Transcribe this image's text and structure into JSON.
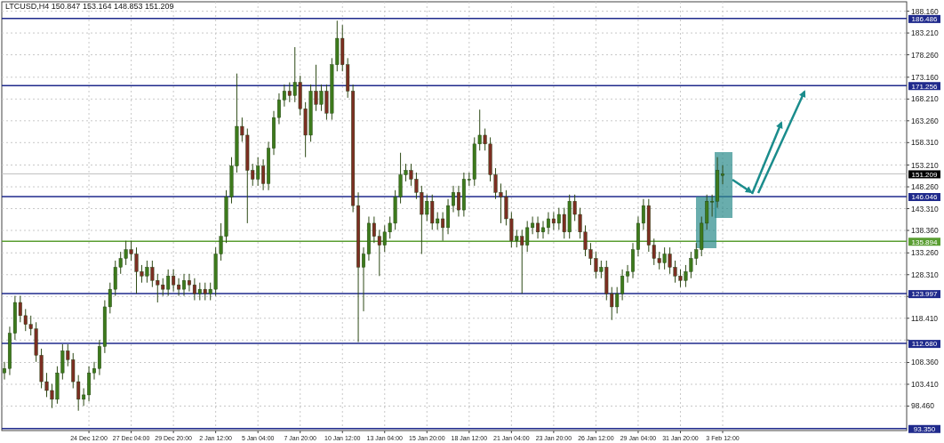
{
  "chart_data": {
    "type": "candlestick",
    "title": "LTCUSD,H4  150.847 153.164 148.853 151.209",
    "categories": [
      null,
      null,
      null,
      null,
      null,
      null,
      null,
      null,
      null,
      null,
      null,
      null,
      null,
      null,
      null,
      null,
      "24 Dec 12:00",
      null,
      null,
      null,
      null,
      null,
      null,
      null,
      "27 Dec 04:00",
      null,
      null,
      null,
      null,
      null,
      null,
      null,
      "29 Dec 20:00",
      null,
      null,
      null,
      null,
      null,
      null,
      null,
      "2 Jan 12:00",
      null,
      null,
      null,
      null,
      null,
      null,
      null,
      "5 Jan 04:00",
      null,
      null,
      null,
      null,
      null,
      null,
      null,
      "7 Jan 20:00",
      null,
      null,
      null,
      null,
      null,
      null,
      null,
      "10 Jan 12:00",
      null,
      null,
      null,
      null,
      null,
      null,
      null,
      "13 Jan 04:00",
      null,
      null,
      null,
      null,
      null,
      null,
      null,
      "15 Jan 20:00",
      null,
      null,
      null,
      null,
      null,
      null,
      null,
      "18 Jan 12:00",
      null,
      null,
      null,
      null,
      null,
      null,
      null,
      "21 Jan 04:00",
      null,
      null,
      null,
      null,
      null,
      null,
      null,
      "23 Jan 20:00",
      null,
      null,
      null,
      null,
      null,
      null,
      null,
      "26 Jan 12:00",
      null,
      null,
      null,
      null,
      null,
      null,
      null,
      "29 Jan 04:00",
      null,
      null,
      null,
      null,
      null,
      null,
      null,
      "31 Jan 20:00",
      null,
      null,
      null,
      null,
      null,
      null,
      null,
      "3 Feb 12:00",
      null,
      null,
      null,
      null,
      null,
      null,
      null,
      null,
      null,
      null,
      null,
      null,
      null,
      null,
      null,
      null,
      null,
      null,
      null,
      null,
      null,
      null,
      null,
      null,
      null,
      null,
      null,
      null,
      null,
      null,
      null,
      null,
      null,
      null
    ],
    "ohlc": [
      [
        106,
        108.5,
        104.5,
        107
      ],
      [
        107,
        116.5,
        105.5,
        115
      ],
      [
        115,
        123.5,
        113.5,
        122
      ],
      [
        122,
        123.5,
        117.5,
        119
      ],
      [
        119,
        120.5,
        115.5,
        117
      ],
      [
        117,
        119,
        114.5,
        116
      ],
      [
        116,
        117.5,
        108.5,
        110
      ],
      [
        110,
        111.5,
        102.5,
        104
      ],
      [
        104,
        106,
        100.5,
        102
      ],
      [
        102,
        103.5,
        98,
        100
      ],
      [
        100,
        107.5,
        99,
        106
      ],
      [
        106,
        112.5,
        104.5,
        111
      ],
      [
        111,
        112.5,
        107.5,
        109
      ],
      [
        109,
        110.5,
        102.5,
        104
      ],
      [
        104,
        105.5,
        97.4,
        100
      ],
      [
        100,
        102.5,
        98.5,
        101
      ],
      [
        101,
        107.5,
        99.5,
        106
      ],
      [
        106,
        108.5,
        104.5,
        107
      ],
      [
        107,
        113.5,
        105.5,
        112
      ],
      [
        112,
        122.5,
        110.5,
        121
      ],
      [
        121,
        126.5,
        119.5,
        125
      ],
      [
        125,
        131.5,
        123.5,
        130
      ],
      [
        130,
        133.5,
        128.5,
        132
      ],
      [
        132,
        136,
        130.5,
        134
      ],
      [
        134,
        136,
        131.5,
        133
      ],
      [
        133,
        134.5,
        124,
        129
      ],
      [
        129,
        130.5,
        126.5,
        128
      ],
      [
        128,
        131.5,
        126.5,
        130
      ],
      [
        130,
        131.5,
        125.5,
        127
      ],
      [
        127,
        128.5,
        122,
        126
      ],
      [
        126,
        127.5,
        123.5,
        125
      ],
      [
        125,
        129.5,
        123.5,
        128
      ],
      [
        128,
        129.5,
        124.5,
        126
      ],
      [
        126,
        127.5,
        123.5,
        125
      ],
      [
        125,
        128.5,
        123.5,
        127
      ],
      [
        127,
        128.5,
        124.5,
        126
      ],
      [
        126,
        127.5,
        122.5,
        124
      ],
      [
        124,
        126.5,
        122.5,
        125
      ],
      [
        125,
        126.5,
        122.5,
        124
      ],
      [
        124,
        126.5,
        122.5,
        125
      ],
      [
        125,
        134.5,
        123.5,
        133
      ],
      [
        133,
        140,
        131.5,
        137
      ],
      [
        137,
        147.5,
        135.5,
        146
      ],
      [
        146,
        155,
        144.5,
        153
      ],
      [
        153,
        174,
        151.5,
        162
      ],
      [
        162,
        164,
        158.5,
        160
      ],
      [
        160,
        161.5,
        140,
        152
      ],
      [
        152,
        153.5,
        148.5,
        150
      ],
      [
        150,
        155,
        148.5,
        153
      ],
      [
        153,
        154.5,
        147.5,
        149
      ],
      [
        149,
        158.5,
        147.5,
        157
      ],
      [
        157,
        165.5,
        155.5,
        164
      ],
      [
        164,
        169.5,
        162.5,
        168
      ],
      [
        168,
        171.5,
        166.5,
        170
      ],
      [
        170,
        172,
        167.5,
        169
      ],
      [
        169,
        180,
        167.5,
        172
      ],
      [
        172,
        173.5,
        164.5,
        166
      ],
      [
        166,
        167.5,
        155,
        160
      ],
      [
        160,
        171.5,
        158.5,
        170
      ],
      [
        170,
        176,
        165.5,
        167
      ],
      [
        167,
        171.5,
        165.5,
        170
      ],
      [
        170,
        171.5,
        163.5,
        165
      ],
      [
        165,
        177.5,
        163.5,
        176
      ],
      [
        176,
        186,
        174.5,
        182
      ],
      [
        182,
        185,
        174.5,
        176
      ],
      [
        176,
        177.5,
        168.5,
        170
      ],
      [
        170,
        171.5,
        142.5,
        144
      ],
      [
        144,
        147,
        113,
        130
      ],
      [
        130,
        134.5,
        120,
        133
      ],
      [
        133,
        141.5,
        131.5,
        140
      ],
      [
        140,
        141.5,
        135.5,
        137
      ],
      [
        137,
        138.5,
        128,
        135
      ],
      [
        135,
        139.5,
        133.5,
        138
      ],
      [
        138,
        141.5,
        136.5,
        140
      ],
      [
        140,
        147.5,
        138.5,
        146
      ],
      [
        146,
        156,
        144.5,
        151
      ],
      [
        151,
        153.5,
        149.5,
        152
      ],
      [
        152,
        153.5,
        148.5,
        150
      ],
      [
        150,
        151.5,
        145.5,
        147
      ],
      [
        147,
        148.5,
        133,
        142
      ],
      [
        142,
        146.5,
        140.5,
        145
      ],
      [
        145,
        146.5,
        138.5,
        140
      ],
      [
        140,
        142.5,
        138.5,
        141
      ],
      [
        141,
        142.5,
        136,
        139
      ],
      [
        139,
        145.5,
        137.5,
        144
      ],
      [
        144,
        148.5,
        142.5,
        147
      ],
      [
        147,
        148.5,
        141.5,
        143
      ],
      [
        143,
        151.5,
        141.5,
        150
      ],
      [
        150,
        151.5,
        148.5,
        150
      ],
      [
        150,
        159.5,
        148.5,
        158
      ],
      [
        158,
        165.8,
        156.5,
        160
      ],
      [
        160,
        161.5,
        156.5,
        158
      ],
      [
        158,
        159.5,
        149.5,
        151
      ],
      [
        151,
        152.5,
        145.5,
        147
      ],
      [
        147,
        149,
        140,
        146
      ],
      [
        146,
        147.5,
        139.5,
        141
      ],
      [
        141,
        142.5,
        134.5,
        136
      ],
      [
        136,
        138.5,
        134.5,
        137
      ],
      [
        137,
        138.5,
        124,
        135
      ],
      [
        135,
        140.5,
        133.5,
        139
      ],
      [
        139,
        141.5,
        137.5,
        140
      ],
      [
        140,
        141.5,
        136.5,
        138
      ],
      [
        138,
        140.5,
        136.5,
        139
      ],
      [
        139,
        142.5,
        137.5,
        141
      ],
      [
        141,
        142.5,
        138.5,
        140
      ],
      [
        140,
        143.5,
        138.5,
        142
      ],
      [
        142,
        143.5,
        136.5,
        138
      ],
      [
        138,
        146.5,
        136.5,
        145
      ],
      [
        145,
        146.5,
        140.5,
        142
      ],
      [
        142,
        143.5,
        136.5,
        138
      ],
      [
        138,
        139.5,
        132.5,
        134
      ],
      [
        134,
        135.5,
        130.5,
        132
      ],
      [
        132,
        133.5,
        127.5,
        129
      ],
      [
        129,
        131.5,
        127.5,
        130
      ],
      [
        130,
        131.5,
        122.5,
        124
      ],
      [
        124,
        125.5,
        118,
        121
      ],
      [
        121,
        125.5,
        119.5,
        124
      ],
      [
        124,
        129.5,
        122.5,
        128
      ],
      [
        128,
        130.5,
        126.5,
        129
      ],
      [
        129,
        135.5,
        127.5,
        134
      ],
      [
        134,
        141.5,
        132.5,
        140
      ],
      [
        140,
        145.5,
        138.5,
        144
      ],
      [
        144,
        145.5,
        133.5,
        135
      ],
      [
        135,
        136.5,
        130.5,
        132
      ],
      [
        132,
        133.5,
        129.5,
        131
      ],
      [
        131,
        134.5,
        129.5,
        133
      ],
      [
        133,
        134.5,
        128.5,
        130
      ],
      [
        130,
        131.5,
        126.5,
        128
      ],
      [
        128,
        129.5,
        125.5,
        127
      ],
      [
        127,
        130.5,
        125.5,
        129
      ],
      [
        129,
        133.5,
        127.5,
        132
      ],
      [
        132,
        135.5,
        130.5,
        134
      ],
      [
        134,
        141.5,
        132.5,
        140
      ],
      [
        140,
        146.5,
        138.5,
        145
      ],
      [
        145,
        146.5,
        141.5,
        145
      ],
      [
        145,
        155,
        143.5,
        152
      ],
      [
        150.847,
        153.164,
        148.853,
        151.209
      ],
      null,
      null,
      null,
      null,
      null,
      null,
      null,
      null,
      null,
      null,
      null,
      null,
      null,
      null,
      null,
      null,
      null,
      null,
      null,
      null,
      null,
      null,
      null,
      null,
      null,
      null,
      null,
      null,
      null,
      null,
      null,
      null,
      null,
      null
    ],
    "ylim": [
      92.9,
      190.3
    ],
    "yticks": [
      {
        "value": 188.16,
        "label": "188.160"
      },
      {
        "value": 183.21,
        "label": "183.210"
      },
      {
        "value": 178.26,
        "label": "178.260"
      },
      {
        "value": 173.16,
        "label": "173.160"
      },
      {
        "value": 168.21,
        "label": "168.210"
      },
      {
        "value": 163.26,
        "label": "163.260"
      },
      {
        "value": 158.31,
        "label": "158.310"
      },
      {
        "value": 153.21,
        "label": "153.210"
      },
      {
        "value": 148.26,
        "label": "148.260"
      },
      {
        "value": 143.31,
        "label": "143.310"
      },
      {
        "value": 138.36,
        "label": "138.360"
      },
      {
        "value": 133.26,
        "label": "133.260"
      },
      {
        "value": 128.31,
        "label": "128.310"
      },
      {
        "value": 123.36,
        "label": null
      },
      {
        "value": 118.41,
        "label": "118.410"
      },
      {
        "value": 113.46,
        "label": null
      },
      {
        "value": 108.36,
        "label": "108.360"
      },
      {
        "value": 103.41,
        "label": "103.410"
      },
      {
        "value": 98.46,
        "label": "98.460"
      }
    ],
    "ref_lines": [
      {
        "axis": "y",
        "value": 186.486,
        "label": "186.486",
        "color": "#1f2a8c"
      },
      {
        "axis": "y",
        "value": 171.256,
        "label": "171.256",
        "color": "#1f2a8c"
      },
      {
        "axis": "y",
        "value": 151.209,
        "label": "151.209",
        "color": "#c0c0c0"
      },
      {
        "axis": "y",
        "value": 146.046,
        "label": "146.046",
        "color": "#1f2a8c"
      },
      {
        "axis": "y",
        "value": 135.894,
        "label": "135.894",
        "color": "#5a9e32"
      },
      {
        "axis": "y",
        "value": 123.997,
        "label": "123.997",
        "color": "#1f2a8c"
      },
      {
        "axis": "y",
        "value": 112.68,
        "label": "112.680",
        "color": "#1f2a8c"
      },
      {
        "axis": "y",
        "value": 93.35,
        "label": "93.350",
        "color": "#1f2a8c"
      }
    ],
    "grid": true
  }
}
